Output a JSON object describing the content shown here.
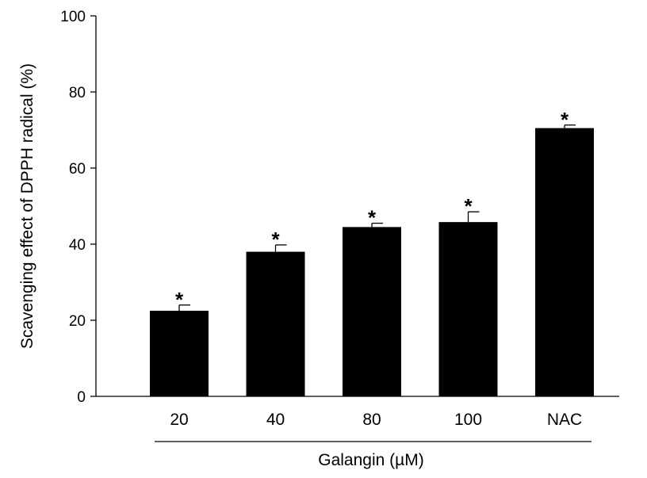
{
  "chart_data": {
    "type": "bar",
    "title": "",
    "xlabel": "Galangin (µM)",
    "ylabel": "Scavenging effect of DPPH radical (%)",
    "ylim": [
      0,
      100
    ],
    "yticks": [
      0,
      20,
      40,
      60,
      80,
      100
    ],
    "categories": [
      "20",
      "40",
      "80",
      "100",
      "NAC"
    ],
    "values": [
      22.5,
      38,
      44.5,
      45.8,
      70.5
    ],
    "errors": [
      1.5,
      1.8,
      1.0,
      2.7,
      0.8
    ],
    "significance": [
      "*",
      "*",
      "*",
      "*",
      "*"
    ],
    "bar_color": "#000000",
    "grid": false
  }
}
